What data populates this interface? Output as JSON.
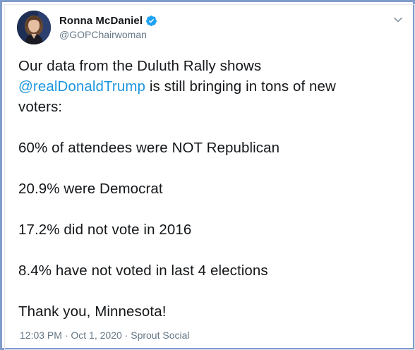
{
  "author": {
    "display_name": "Ronna McDaniel",
    "handle": "@GOPChairwoman",
    "verified": true,
    "avatar_icon": "profile-photo"
  },
  "tweet": {
    "line1": "Our data from the Duluth Rally shows",
    "mention": "@realDonaldTrump",
    "line2_rest": " is still bringing in tons of new",
    "line3": "voters:",
    "stat1": "60% of attendees were NOT Republican",
    "stat2": "20.9% were Democrat",
    "stat3": "17.2% did not vote in 2016",
    "stat4": "8.4% have not voted in last 4 elections",
    "closing": "Thank you, Minnesota!"
  },
  "meta": {
    "time": "12:03 PM",
    "separator1": " · ",
    "date": "Oct 1, 2020",
    "separator2": " · ",
    "source": "Sprout Social"
  },
  "colors": {
    "link": "#1b95e0",
    "text": "#14171a",
    "secondary": "#657786",
    "verified_badge": "#1da1f2",
    "frame": "#7f9ccb"
  },
  "icons": {
    "verified": "verified-badge-icon",
    "menu": "chevron-down-icon"
  }
}
